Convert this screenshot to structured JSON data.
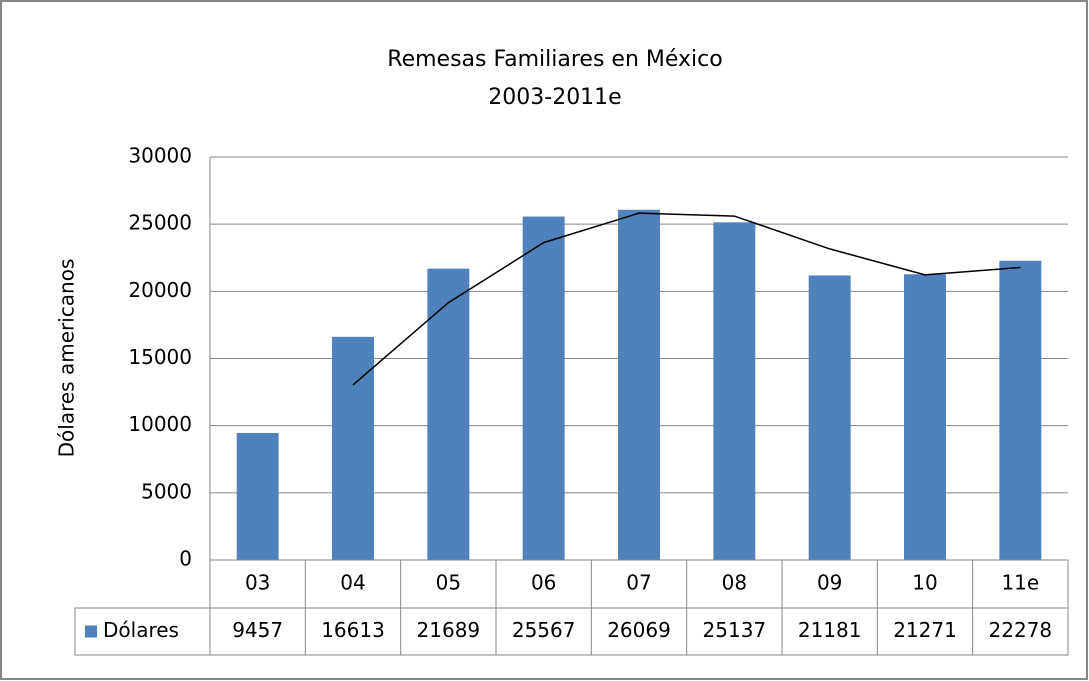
{
  "chart_data": {
    "type": "bar",
    "title": "Remesas Familiares en México",
    "subtitle": "2003-2011e",
    "y_label": "Dólares americanos",
    "categories": [
      "03",
      "04",
      "05",
      "06",
      "07",
      "08",
      "09",
      "10",
      "11e"
    ],
    "series": [
      {
        "name": "Dólares",
        "color": "#4f81bd",
        "values": [
          9457,
          16613,
          21689,
          25567,
          26069,
          25137,
          21181,
          21271,
          22278
        ]
      }
    ],
    "trendline": {
      "color": "#000000",
      "values": [
        null,
        13035,
        19151,
        23628,
        25818,
        25603,
        23159,
        21226,
        21774.5
      ]
    },
    "ylim": [
      0,
      30000
    ],
    "yticks": [
      0,
      5000,
      10000,
      15000,
      20000,
      25000,
      30000
    ],
    "grid": true,
    "data_table": true
  }
}
